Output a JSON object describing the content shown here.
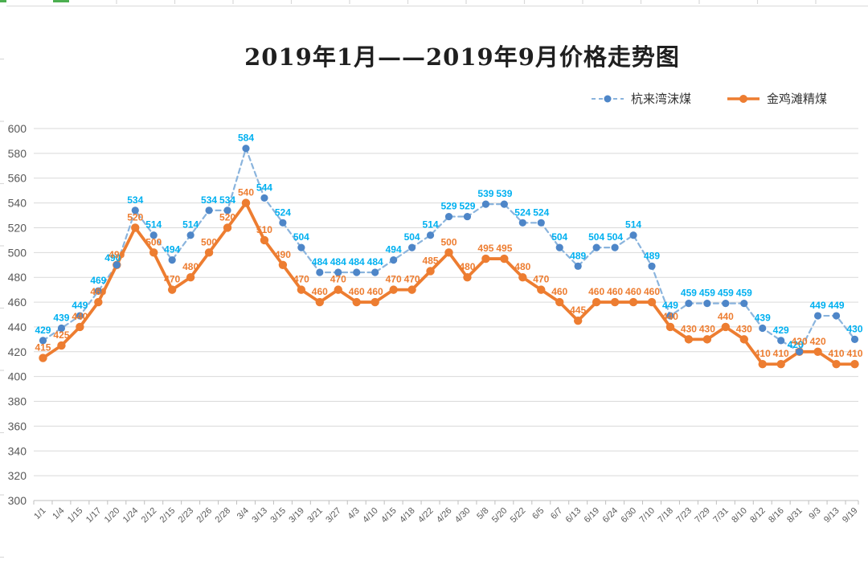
{
  "sheet": {
    "gridline_color": "#d9d9d9",
    "selection_accent_color": "#4caf50"
  },
  "chart_data": {
    "type": "line",
    "title": "2019年1月——2019年9月价格走势图",
    "categories": [
      "1/1",
      "1/4",
      "1/15",
      "1/17",
      "1/20",
      "1/24",
      "2/12",
      "2/15",
      "2/23",
      "2/26",
      "2/28",
      "3/4",
      "3/13",
      "3/15",
      "3/19",
      "3/21",
      "3/27",
      "4/3",
      "4/10",
      "4/15",
      "4/18",
      "4/22",
      "4/26",
      "4/30",
      "5/8",
      "5/20",
      "5/22",
      "6/5",
      "6/7",
      "6/13",
      "6/19",
      "6/24",
      "6/30",
      "7/10",
      "7/18",
      "7/23",
      "7/29",
      "7/31",
      "8/10",
      "8/12",
      "8/16",
      "8/31",
      "9/3",
      "9/13",
      "9/19"
    ],
    "series": [
      {
        "name": "杭来湾沫煤",
        "values": [
          429,
          439,
          449,
          469,
          490,
          534,
          514,
          494,
          514,
          534,
          534,
          584,
          544,
          524,
          504,
          484,
          484,
          484,
          484,
          494,
          504,
          514,
          529,
          529,
          539,
          539,
          524,
          524,
          504,
          489,
          504,
          504,
          514,
          489,
          449,
          459,
          459,
          459,
          459,
          439,
          429,
          420,
          449,
          449,
          430
        ],
        "line_style": "dashed",
        "line_color": "#8ab4dd",
        "marker_color": "#4e86c8",
        "label_color": "#00b0f0"
      },
      {
        "name": "金鸡滩精煤",
        "values": [
          415,
          425,
          440,
          460,
          490,
          520,
          500,
          470,
          480,
          500,
          520,
          540,
          510,
          490,
          470,
          460,
          470,
          460,
          460,
          470,
          470,
          485,
          500,
          480,
          495,
          495,
          480,
          470,
          460,
          445,
          460,
          460,
          460,
          460,
          440,
          430,
          430,
          440,
          430,
          410,
          410,
          420,
          420,
          410,
          410
        ],
        "line_style": "solid",
        "line_color": "#ed7d31",
        "marker_color": "#ed7d31",
        "label_color": "#ed7d31"
      }
    ],
    "ylim": [
      300,
      600
    ],
    "y_ticks": [
      600,
      580,
      560,
      540,
      520,
      500,
      480,
      460,
      440,
      420,
      400,
      380,
      360,
      340,
      320,
      300
    ],
    "grid": true,
    "data_labels": true,
    "legend_position": "top-right",
    "axis_text_color": "#595959",
    "grid_color": "#d9d9d9",
    "axis_line_color": "#bfbfbf"
  }
}
